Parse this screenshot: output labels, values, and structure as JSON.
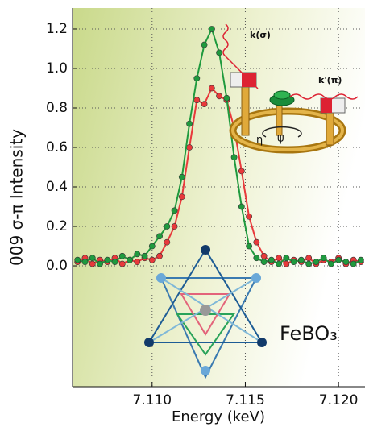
{
  "chart_data": {
    "type": "line",
    "x_label": "Energy (keV)",
    "y_label": "009 σ-π Intensity",
    "x": [
      7.106,
      7.1064,
      7.1068,
      7.1072,
      7.1076,
      7.108,
      7.1084,
      7.1088,
      7.1092,
      7.1096,
      7.11,
      7.1104,
      7.1108,
      7.1112,
      7.1116,
      7.112,
      7.1124,
      7.1128,
      7.1132,
      7.1136,
      7.114,
      7.1144,
      7.1148,
      7.1152,
      7.1156,
      7.116,
      7.1164,
      7.1168,
      7.1172,
      7.1176,
      7.118,
      7.1184,
      7.1188,
      7.1192,
      7.1196,
      7.12,
      7.1204,
      7.1208,
      7.1212
    ],
    "series": [
      {
        "name": "green",
        "color": "#1f9a3e",
        "values": [
          0.03,
          0.02,
          0.04,
          0.01,
          0.03,
          0.02,
          0.05,
          0.03,
          0.06,
          0.05,
          0.1,
          0.15,
          0.2,
          0.28,
          0.45,
          0.72,
          0.95,
          1.12,
          1.2,
          1.08,
          0.85,
          0.55,
          0.3,
          0.1,
          0.04,
          0.02,
          0.03,
          0.01,
          0.04,
          0.02,
          0.03,
          0.01,
          0.02,
          0.04,
          0.01,
          0.03,
          0.02,
          0.01,
          0.03
        ]
      },
      {
        "name": "red",
        "color": "#e8393b",
        "values": [
          0.02,
          0.04,
          0.01,
          0.03,
          0.02,
          0.04,
          0.01,
          0.03,
          0.02,
          0.04,
          0.03,
          0.05,
          0.12,
          0.2,
          0.35,
          0.6,
          0.84,
          0.82,
          0.9,
          0.86,
          0.84,
          0.7,
          0.48,
          0.25,
          0.12,
          0.05,
          0.02,
          0.04,
          0.01,
          0.03,
          0.02,
          0.04,
          0.01,
          0.03,
          0.02,
          0.04,
          0.01,
          0.03,
          0.02
        ]
      }
    ],
    "xlim": [
      7.10573,
      7.12142
    ],
    "ylim": [
      -0.612,
      1.306
    ],
    "xticks": [
      {
        "value": 7.11,
        "label": "7.110"
      },
      {
        "value": 7.115,
        "label": "7.115"
      },
      {
        "value": 7.12,
        "label": "7.120"
      }
    ],
    "yticks": [
      {
        "value": 0,
        "label": "0.0"
      },
      0.2,
      0.4,
      0.6,
      0.8,
      {
        "value": 1,
        "label": "1.0"
      },
      1.2
    ],
    "grid": true,
    "annotations": [
      "FeBO₃",
      "k(σ)",
      "k'(π)",
      "η",
      "ψ"
    ]
  }
}
